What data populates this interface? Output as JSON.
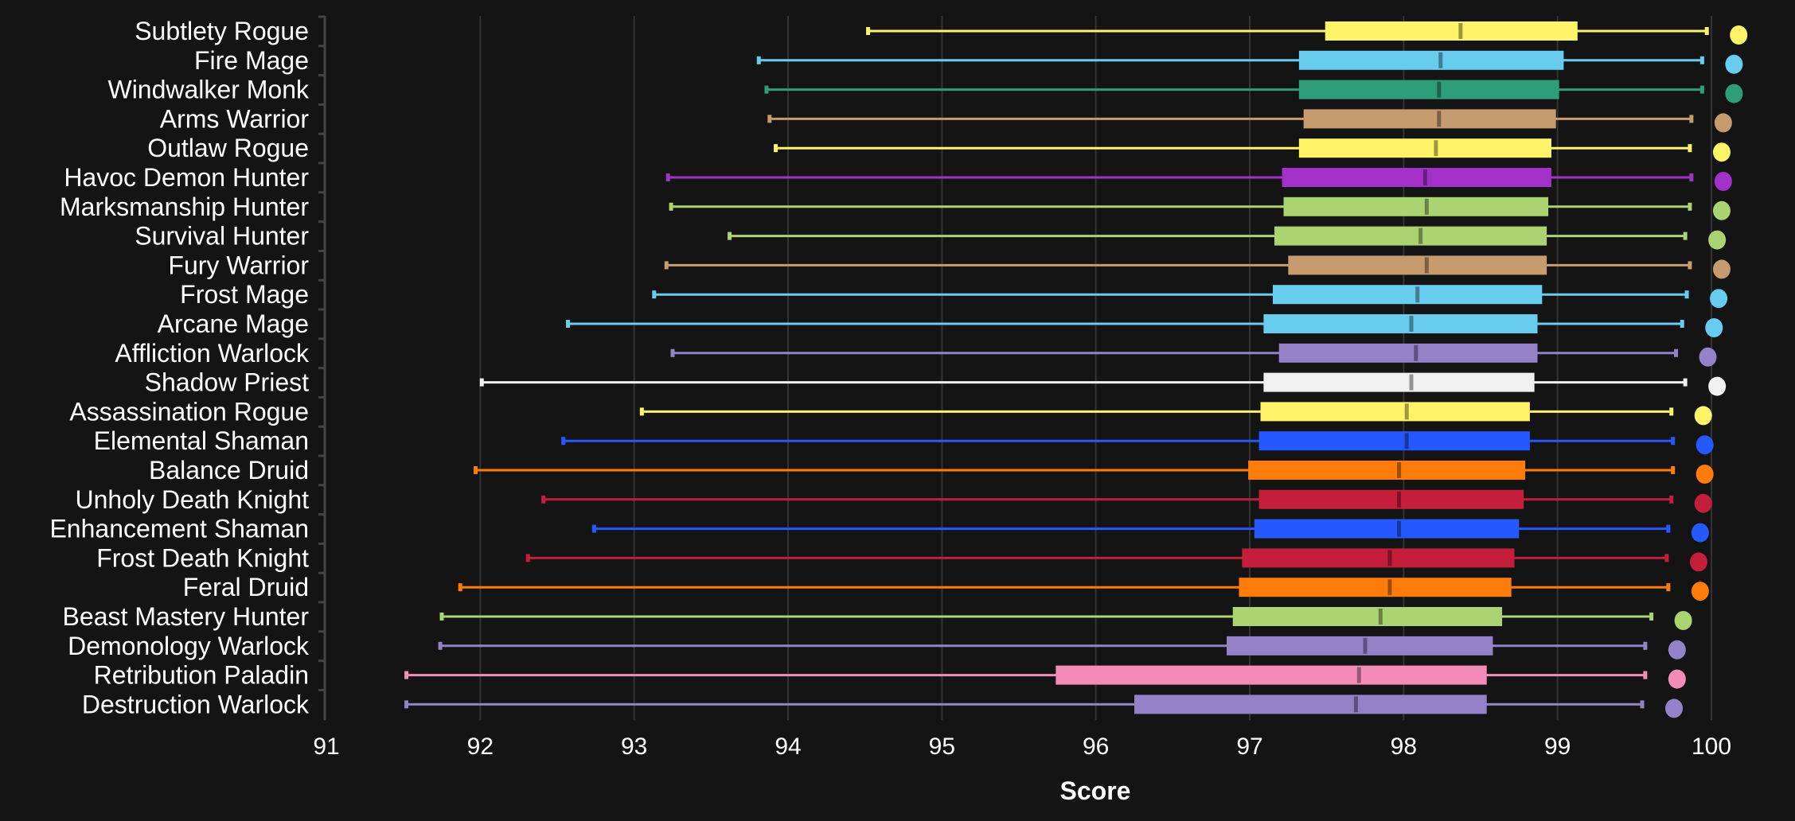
{
  "chart_data": {
    "type": "boxplot",
    "title": "",
    "xlabel": "Score",
    "ylabel": "",
    "xlim": [
      91,
      100
    ],
    "xticks": [
      "91",
      "92",
      "93",
      "94",
      "95",
      "96",
      "97",
      "98",
      "99",
      "100"
    ],
    "grid": true,
    "orientation": "horizontal",
    "series": [
      {
        "category": "Subtlety Rogue",
        "min": 94.52,
        "q1": 97.49,
        "median": 98.37,
        "q3": 99.13,
        "max": 99.97,
        "color": "#FFF468"
      },
      {
        "category": "Fire Mage",
        "min": 93.81,
        "q1": 97.32,
        "median": 98.24,
        "q3": 99.04,
        "max": 99.94,
        "color": "#68CCEF"
      },
      {
        "category": "Windwalker Monk",
        "min": 93.86,
        "q1": 97.32,
        "median": 98.23,
        "q3": 99.01,
        "max": 99.94,
        "color": "#2E9E7A"
      },
      {
        "category": "Arms Warrior",
        "min": 93.88,
        "q1": 97.35,
        "median": 98.23,
        "q3": 98.99,
        "max": 99.87,
        "color": "#C69B6D"
      },
      {
        "category": "Outlaw Rogue",
        "min": 93.92,
        "q1": 97.32,
        "median": 98.21,
        "q3": 98.96,
        "max": 99.86,
        "color": "#FFF468"
      },
      {
        "category": "Havoc Demon Hunter",
        "min": 93.22,
        "q1": 97.21,
        "median": 98.14,
        "q3": 98.96,
        "max": 99.87,
        "color": "#A330C9"
      },
      {
        "category": "Marksmanship Hunter",
        "min": 93.24,
        "q1": 97.22,
        "median": 98.15,
        "q3": 98.94,
        "max": 99.86,
        "color": "#AAD372"
      },
      {
        "category": "Survival Hunter",
        "min": 93.62,
        "q1": 97.16,
        "median": 98.11,
        "q3": 98.93,
        "max": 99.83,
        "color": "#AAD372"
      },
      {
        "category": "Fury Warrior",
        "min": 93.21,
        "q1": 97.25,
        "median": 98.15,
        "q3": 98.93,
        "max": 99.86,
        "color": "#C69B6D"
      },
      {
        "category": "Frost Mage",
        "min": 93.13,
        "q1": 97.15,
        "median": 98.09,
        "q3": 98.9,
        "max": 99.84,
        "color": "#68CCEF"
      },
      {
        "category": "Arcane Mage",
        "min": 92.57,
        "q1": 97.09,
        "median": 98.05,
        "q3": 98.87,
        "max": 99.81,
        "color": "#68CCEF"
      },
      {
        "category": "Affliction Warlock",
        "min": 93.25,
        "q1": 97.19,
        "median": 98.08,
        "q3": 98.87,
        "max": 99.77,
        "color": "#9482C9"
      },
      {
        "category": "Shadow Priest",
        "min": 92.01,
        "q1": 97.09,
        "median": 98.05,
        "q3": 98.85,
        "max": 99.83,
        "color": "#F0F0F0"
      },
      {
        "category": "Assassination Rogue",
        "min": 93.05,
        "q1": 97.07,
        "median": 98.02,
        "q3": 98.82,
        "max": 99.74,
        "color": "#FFF468"
      },
      {
        "category": "Elemental Shaman",
        "min": 92.54,
        "q1": 97.06,
        "median": 98.02,
        "q3": 98.82,
        "max": 99.75,
        "color": "#2459FF"
      },
      {
        "category": "Balance Druid",
        "min": 91.97,
        "q1": 96.99,
        "median": 97.97,
        "q3": 98.79,
        "max": 99.75,
        "color": "#FF7C0A"
      },
      {
        "category": "Unholy Death Knight",
        "min": 92.41,
        "q1": 97.06,
        "median": 97.97,
        "q3": 98.78,
        "max": 99.74,
        "color": "#C41E3A"
      },
      {
        "category": "Enhancement Shaman",
        "min": 92.74,
        "q1": 97.03,
        "median": 97.97,
        "q3": 98.75,
        "max": 99.72,
        "color": "#2459FF"
      },
      {
        "category": "Frost Death Knight",
        "min": 92.31,
        "q1": 96.95,
        "median": 97.91,
        "q3": 98.72,
        "max": 99.71,
        "color": "#C41E3A"
      },
      {
        "category": "Feral Druid",
        "min": 91.87,
        "q1": 96.93,
        "median": 97.91,
        "q3": 98.7,
        "max": 99.72,
        "color": "#FF7C0A"
      },
      {
        "category": "Beast Mastery Hunter",
        "min": 91.75,
        "q1": 96.89,
        "median": 97.85,
        "q3": 98.64,
        "max": 99.61,
        "color": "#AAD372"
      },
      {
        "category": "Demonology Warlock",
        "min": 91.74,
        "q1": 96.85,
        "median": 97.75,
        "q3": 98.58,
        "max": 99.57,
        "color": "#9482C9"
      },
      {
        "category": "Retribution Paladin",
        "min": 91.52,
        "q1": 95.74,
        "median": 97.71,
        "q3": 98.54,
        "max": 99.57,
        "color": "#F48CBA"
      },
      {
        "category": "Destruction Warlock",
        "min": 91.52,
        "q1": 96.25,
        "median": 97.69,
        "q3": 98.54,
        "max": 99.55,
        "color": "#9482C9"
      }
    ]
  }
}
